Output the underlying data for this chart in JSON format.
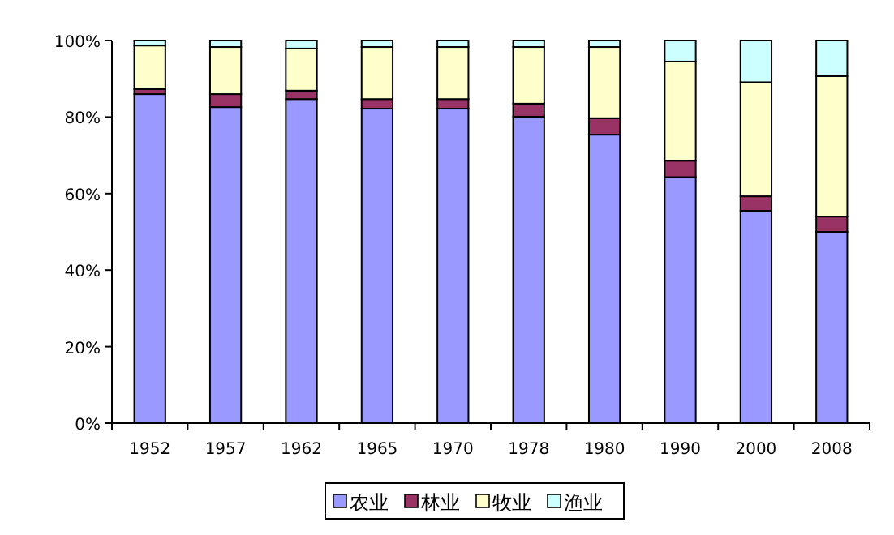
{
  "chart_data": {
    "type": "bar",
    "stacked": true,
    "categories": [
      "1952",
      "1957",
      "1962",
      "1965",
      "1970",
      "1978",
      "1980",
      "1990",
      "2000",
      "2008"
    ],
    "series": [
      {
        "name": "农业",
        "color": "#9999ff",
        "values": [
          86.0,
          82.6,
          84.7,
          82.2,
          82.2,
          80.1,
          75.4,
          64.3,
          55.5,
          50.0
        ]
      },
      {
        "name": "林业",
        "color": "#993366",
        "values": [
          1.3,
          3.4,
          2.2,
          2.5,
          2.5,
          3.4,
          4.3,
          4.3,
          3.8,
          4.0
        ]
      },
      {
        "name": "牧业",
        "color": "#ffffcc",
        "values": [
          11.4,
          12.3,
          11.0,
          13.6,
          13.6,
          14.8,
          18.6,
          25.9,
          29.8,
          36.7
        ]
      },
      {
        "name": "渔业",
        "color": "#ccffff",
        "values": [
          1.3,
          1.7,
          2.1,
          1.7,
          1.7,
          1.7,
          1.7,
          5.5,
          10.9,
          9.3
        ]
      }
    ],
    "ylim": [
      0,
      100
    ],
    "yticks": [
      {
        "value": 0,
        "label": "0%"
      },
      {
        "value": 20,
        "label": "20%"
      },
      {
        "value": 40,
        "label": "40%"
      },
      {
        "value": 60,
        "label": "60%"
      },
      {
        "value": 80,
        "label": "80%"
      },
      {
        "value": 100,
        "label": "100%"
      }
    ],
    "legend": "bottom"
  }
}
